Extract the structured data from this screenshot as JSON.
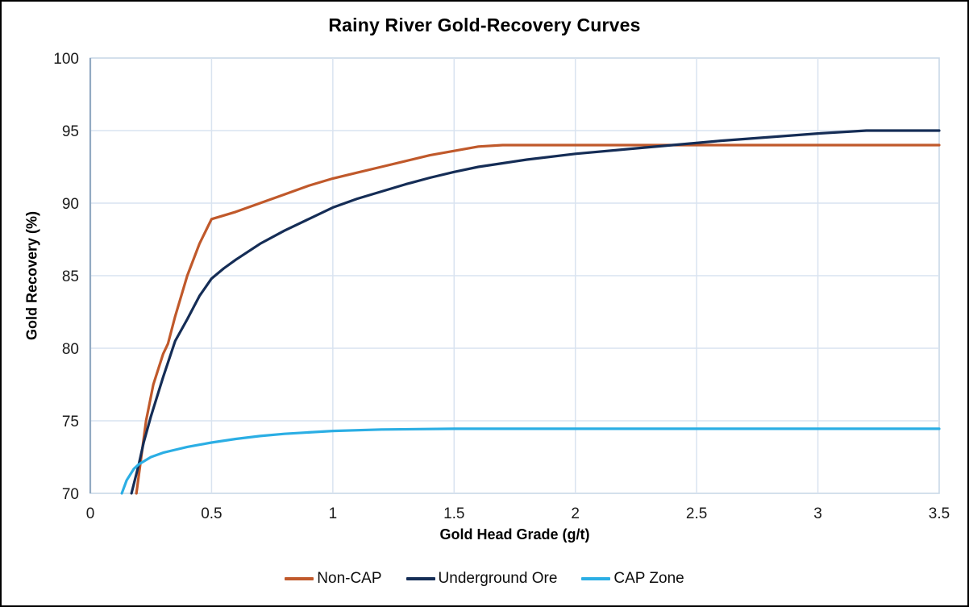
{
  "chart_data": {
    "type": "line",
    "title": "Rainy River Gold-Recovery Curves",
    "xlabel": "Gold Head Grade (g/t)",
    "ylabel": "Gold Recovery (%)",
    "xlim": [
      0,
      3.5
    ],
    "ylim": [
      70,
      100
    ],
    "x_ticks": [
      0,
      0.5,
      1,
      1.5,
      2,
      2.5,
      3,
      3.5
    ],
    "x_tick_labels": [
      "0",
      "0.5",
      "1",
      "1.5",
      "2",
      "2.5",
      "3",
      "3.5"
    ],
    "y_ticks": [
      70,
      75,
      80,
      85,
      90,
      95,
      100
    ],
    "y_tick_labels": [
      "70",
      "75",
      "80",
      "85",
      "90",
      "95",
      "100"
    ],
    "grid": true,
    "legend_position": "bottom",
    "series": [
      {
        "name": "Non-CAP",
        "color": "#C0592B",
        "x": [
          0.19,
          0.21,
          0.23,
          0.26,
          0.3,
          0.32,
          0.35,
          0.4,
          0.45,
          0.5,
          0.55,
          0.6,
          0.7,
          0.8,
          0.9,
          1.0,
          1.1,
          1.2,
          1.3,
          1.4,
          1.5,
          1.6,
          1.7,
          1.8,
          2.0,
          2.2,
          2.4,
          2.6,
          2.8,
          3.0,
          3.2,
          3.5
        ],
        "y": [
          70,
          72.5,
          75.0,
          77.5,
          79.6,
          80.3,
          82.2,
          85.0,
          87.2,
          88.9,
          89.15,
          89.4,
          90.0,
          90.6,
          91.2,
          91.7,
          92.1,
          92.5,
          92.9,
          93.3,
          93.6,
          93.9,
          94.0,
          94.0,
          94.0,
          94.0,
          94.0,
          94.0,
          94.0,
          94.0,
          94.0,
          94.0
        ]
      },
      {
        "name": "Underground Ore",
        "color": "#152D56",
        "x": [
          0.17,
          0.2,
          0.22,
          0.25,
          0.3,
          0.35,
          0.4,
          0.45,
          0.5,
          0.55,
          0.6,
          0.7,
          0.8,
          0.9,
          1.0,
          1.1,
          1.2,
          1.3,
          1.4,
          1.5,
          1.6,
          1.7,
          1.8,
          2.0,
          2.2,
          2.4,
          2.6,
          2.8,
          3.0,
          3.2,
          3.5
        ],
        "y": [
          70,
          72.0,
          73.5,
          75.3,
          78.0,
          80.5,
          82.0,
          83.6,
          84.8,
          85.5,
          86.1,
          87.2,
          88.1,
          88.9,
          89.7,
          90.3,
          90.8,
          91.3,
          91.75,
          92.15,
          92.5,
          92.75,
          93.0,
          93.4,
          93.7,
          94.0,
          94.3,
          94.55,
          94.8,
          95.0,
          95.0
        ]
      },
      {
        "name": "CAP Zone",
        "color": "#2BAEE4",
        "x": [
          0.13,
          0.15,
          0.18,
          0.2,
          0.25,
          0.3,
          0.35,
          0.4,
          0.45,
          0.5,
          0.6,
          0.7,
          0.8,
          0.9,
          1.0,
          1.2,
          1.5,
          2.0,
          2.5,
          3.0,
          3.5
        ],
        "y": [
          70,
          70.9,
          71.7,
          72.0,
          72.5,
          72.8,
          73.0,
          73.2,
          73.35,
          73.5,
          73.75,
          73.95,
          74.1,
          74.2,
          74.3,
          74.4,
          74.45,
          74.45,
          74.45,
          74.45,
          74.45
        ]
      }
    ]
  },
  "legend": {
    "items": [
      {
        "label": "Non-CAP"
      },
      {
        "label": "Underground Ore"
      },
      {
        "label": "CAP Zone"
      }
    ]
  },
  "styles": {
    "grid_color": "#D9E3F0",
    "plot_border_color": "#C9D8E8",
    "axis_line_color": "#92AAC2",
    "tick_label_color": "#1a1a1a",
    "background": "#FFFFFF",
    "outer_border_color": "#000000"
  }
}
